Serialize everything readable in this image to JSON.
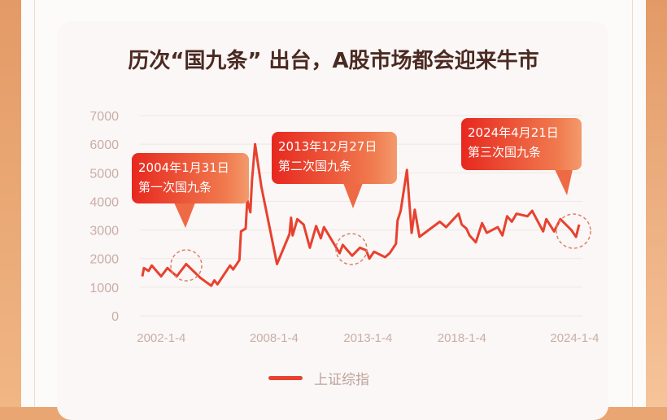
{
  "title": "历次“国九条” 出台，A股市场都会迎来牛市",
  "colors": {
    "line": "#e8412f",
    "callout_start": "#e7281f",
    "callout_end": "#f39a6c",
    "axis_text": "#c9aea6",
    "title": "#4b2a22",
    "grid": "#efe7e4"
  },
  "chart_data": {
    "type": "line",
    "title": "历次“国九条” 出台，A股市场都会迎来牛市",
    "xlabel": "",
    "ylabel": "",
    "ylim": [
      0,
      7000
    ],
    "yticks": [
      "0",
      "1000",
      "2000",
      "3000",
      "4000",
      "5000",
      "6000",
      "7000"
    ],
    "xticks": [
      "2002-1-4",
      "2008-1-4",
      "2013-1-4",
      "2018-1-4",
      "2024-1-4"
    ],
    "grid": "horizontal",
    "legend": "bottom",
    "series": [
      {
        "name": "上证综指",
        "x": [
          "2001-01",
          "2001-02",
          "2001-05",
          "2001-07",
          "2002-01",
          "2002-05",
          "2002-11",
          "2003-05",
          "2004-02",
          "2004-09",
          "2004-11",
          "2005-01",
          "2005-09",
          "2005-11",
          "2006-03",
          "2006-04",
          "2006-07",
          "2006-08",
          "2006-10",
          "2006-11",
          "2007-01",
          "2007-05",
          "2008-03",
          "2008-11",
          "2008-12",
          "2009-01",
          "2009-04",
          "2009-08",
          "2009-12",
          "2010-04",
          "2010-07",
          "2010-09",
          "2011-07",
          "2011-09",
          "2012-03",
          "2012-08",
          "2012-12",
          "2013-02",
          "2013-05",
          "2013-12",
          "2014-03",
          "2014-07",
          "2014-08",
          "2014-10",
          "2015-02",
          "2015-05",
          "2015-07",
          "2015-10",
          "2016-11",
          "2017-03",
          "2017-11",
          "2018-01",
          "2018-04",
          "2018-06",
          "2018-10",
          "2019-02",
          "2019-05",
          "2019-12",
          "2020-03",
          "2020-06",
          "2020-09",
          "2020-12",
          "2021-07",
          "2021-10",
          "2022-05",
          "2022-07",
          "2022-12",
          "2023-04",
          "2023-11",
          "2024-02",
          "2024-04"
        ],
        "values": [
          1380,
          1670,
          1570,
          1760,
          1380,
          1670,
          1380,
          1810,
          1330,
          1050,
          1240,
          1100,
          1760,
          1620,
          1950,
          2950,
          3050,
          4050,
          3620,
          4710,
          6000,
          4520,
          1810,
          2860,
          3430,
          2810,
          3380,
          3190,
          2380,
          3140,
          2710,
          3100,
          2190,
          2480,
          2100,
          2380,
          2290,
          2000,
          2240,
          2050,
          2190,
          2520,
          3330,
          3670,
          5100,
          2900,
          3710,
          2760,
          3290,
          3100,
          3570,
          3190,
          3050,
          2810,
          2570,
          3240,
          2900,
          3100,
          2810,
          3480,
          3290,
          3570,
          3480,
          3670,
          2950,
          3380,
          2950,
          3380,
          3000,
          2760,
          3190
        ]
      }
    ],
    "annotations": [
      {
        "date_text": "2004年1月31日",
        "label": "第一次国九条"
      },
      {
        "date_text": "2013年12月27日",
        "label": "第二次国九条"
      },
      {
        "date_text": "2024年4月21日",
        "label": "第三次国九条"
      }
    ]
  }
}
